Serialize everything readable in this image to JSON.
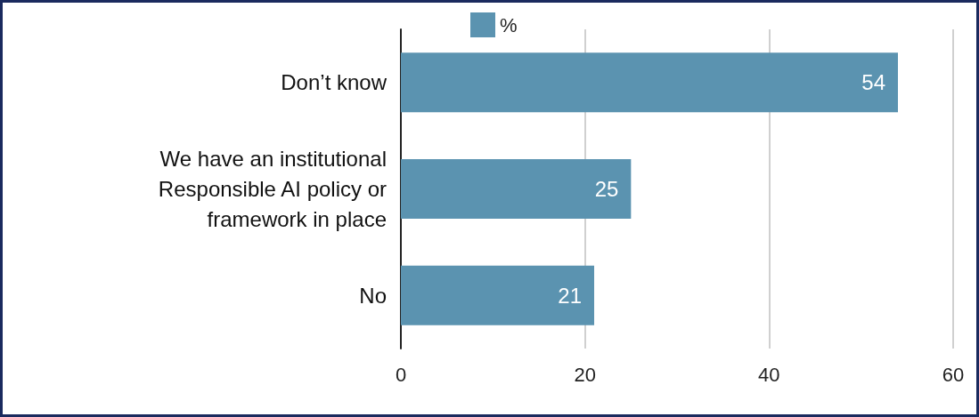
{
  "chart_data": {
    "type": "bar",
    "orientation": "horizontal",
    "categories": [
      "Don’t know",
      "We have an institutional\nResponsible AI policy or\nframework in place",
      "No"
    ],
    "series": [
      {
        "name": "%",
        "color": "#5b93b0",
        "values": [
          54,
          25,
          21
        ]
      }
    ],
    "xlim": [
      0,
      60
    ],
    "xticks": [
      0,
      20,
      40,
      60
    ],
    "grid": "x",
    "legend": "top",
    "data_labels": true
  }
}
